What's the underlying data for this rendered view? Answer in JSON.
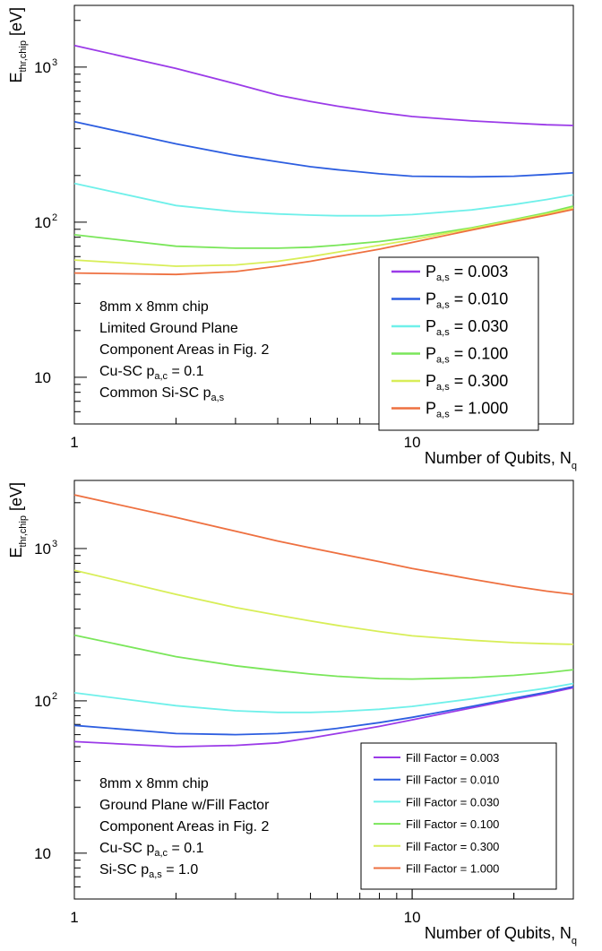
{
  "colors": [
    "#9b3be8",
    "#2d5ee0",
    "#6ff0ea",
    "#7ae65a",
    "#d8ee58",
    "#ee7040"
  ],
  "chart_data": [
    {
      "type": "line",
      "x_log": true,
      "y_log": true,
      "xlim": [
        1,
        30
      ],
      "ylim": [
        5,
        2500
      ],
      "xlabel": "Number of Qubits, N",
      "xlabel_sub": "q",
      "ylabel": "E",
      "ylabel_sub": "thr,chip",
      "ylabel_unit": " [eV]",
      "x_tick_labels": [
        {
          "value": 1,
          "label": "1"
        },
        {
          "value": 10,
          "label": "10"
        }
      ],
      "y_tick_labels": [
        {
          "value": 10,
          "label": "10"
        },
        {
          "value": 100,
          "label": "10",
          "exp": "2"
        },
        {
          "value": 1000,
          "label": "10",
          "exp": "3"
        }
      ],
      "legend_position": "bottom-right",
      "annotation": {
        "l1": "8mm x 8mm chip",
        "l2": "Limited Ground Plane",
        "l3": "Component Areas in Fig. 2",
        "l4": "Cu-SC p",
        "l4_sub": "a,c",
        "l4_tail": " = 0.1",
        "l5": "Common Si-SC p",
        "l5_sub": "a,s",
        "l5_tail": ""
      },
      "legend_prefix": "P",
      "legend_sub": "a,s",
      "x": [
        1,
        2,
        3,
        4,
        5,
        6,
        8,
        10,
        15,
        20,
        25,
        30
      ],
      "series": [
        {
          "label": " = 0.003",
          "values": [
            1380,
            980,
            780,
            660,
            600,
            560,
            510,
            480,
            450,
            435,
            425,
            420
          ]
        },
        {
          "label": " = 0.010",
          "values": [
            445,
            320,
            270,
            245,
            228,
            218,
            205,
            198,
            196,
            198,
            203,
            208
          ]
        },
        {
          "label": " = 0.030",
          "values": [
            178,
            128,
            117,
            113,
            111,
            110,
            110,
            112,
            120,
            130,
            140,
            150
          ]
        },
        {
          "label": " = 0.100",
          "values": [
            83,
            70,
            68,
            68,
            69,
            71,
            75,
            80,
            92,
            104,
            115,
            127
          ]
        },
        {
          "label": " = 0.300",
          "values": [
            57,
            52,
            53,
            56,
            60,
            64,
            71,
            77,
            91,
            103,
            113,
            124
          ]
        },
        {
          "label": " = 1.000",
          "values": [
            47,
            46,
            48,
            52,
            56,
            60,
            67,
            74,
            89,
            101,
            111,
            121
          ]
        }
      ]
    },
    {
      "type": "line",
      "x_log": true,
      "y_log": true,
      "xlim": [
        1,
        30
      ],
      "ylim": [
        5,
        2800
      ],
      "xlabel": "Number of Qubits, N",
      "xlabel_sub": "q",
      "ylabel": "E",
      "ylabel_sub": "thr,chip",
      "ylabel_unit": " [eV]",
      "x_tick_labels": [
        {
          "value": 1,
          "label": "1"
        },
        {
          "value": 10,
          "label": "10"
        }
      ],
      "y_tick_labels": [
        {
          "value": 10,
          "label": "10"
        },
        {
          "value": 100,
          "label": "10",
          "exp": "2"
        },
        {
          "value": 1000,
          "label": "10",
          "exp": "3"
        }
      ],
      "legend_position": "bottom-right",
      "annotation": {
        "l1": "8mm x 8mm chip",
        "l2": "Ground Plane w/Fill Factor",
        "l3": "Component Areas in Fig. 2",
        "l4": "Cu-SC p",
        "l4_sub": "a,c",
        "l4_tail": " = 0.1",
        "l5": "Si-SC p",
        "l5_sub": "a,s",
        "l5_tail": " = 1.0"
      },
      "legend_prefix": "Fill Factor",
      "legend_sub": "",
      "x": [
        1,
        2,
        3,
        4,
        5,
        6,
        8,
        10,
        15,
        20,
        25,
        30
      ],
      "series": [
        {
          "label": " = 0.003",
          "values": [
            54,
            50,
            51,
            53,
            57,
            61,
            68,
            75,
            90,
            102,
            112,
            122
          ]
        },
        {
          "label": " = 0.010",
          "values": [
            69,
            61,
            60,
            61,
            63,
            66,
            72,
            78,
            92,
            104,
            114,
            124
          ]
        },
        {
          "label": " = 0.030",
          "values": [
            113,
            93,
            86,
            84,
            84,
            85,
            88,
            92,
            103,
            113,
            121,
            130
          ]
        },
        {
          "label": " = 0.100",
          "values": [
            270,
            195,
            170,
            158,
            150,
            145,
            140,
            139,
            142,
            147,
            153,
            160
          ]
        },
        {
          "label": " = 0.300",
          "values": [
            720,
            500,
            410,
            365,
            335,
            313,
            285,
            267,
            250,
            241,
            237,
            235
          ]
        },
        {
          "label": " = 1.000",
          "values": [
            2250,
            1600,
            1300,
            1120,
            1010,
            930,
            820,
            740,
            630,
            565,
            525,
            500
          ]
        }
      ]
    }
  ]
}
